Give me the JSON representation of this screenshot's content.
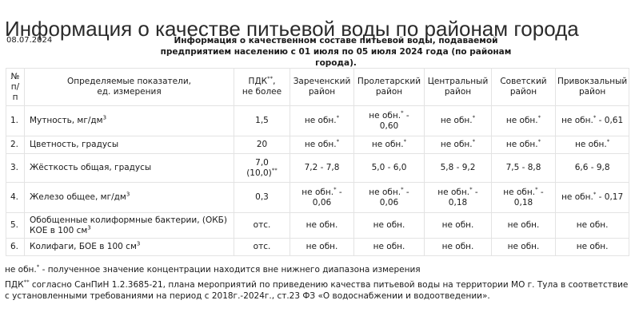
{
  "page": {
    "title": "Информация о качестве питьевой воды по районам города",
    "date": "08.07.2024",
    "subtitle_line1": "Информация о качественном составе питьевой воды, подаваемой",
    "subtitle_line2": "предприятием населению с 01 июля по 05 июля 2024 года (по районам города)."
  },
  "table": {
    "headers": {
      "num": [
        "№",
        "п/",
        "п"
      ],
      "indicator": [
        "Определяемые показатели,",
        "ед. измерения"
      ],
      "pdk": [
        "ПДК",
        "**",
        ",",
        "не более"
      ],
      "districts": [
        [
          "Зареченский",
          "район"
        ],
        [
          "Пролетарский",
          "район"
        ],
        [
          "Центральный",
          "район"
        ],
        [
          "Советский",
          "район"
        ],
        [
          "Привокзальный",
          "район"
        ]
      ]
    },
    "rows": [
      {
        "num": "1.",
        "name": [
          "Мутность, мг/дм",
          "3"
        ],
        "pdk": "1,5",
        "values": [
          [
            "не обн.",
            "*",
            ""
          ],
          [
            "не обн.",
            "*",
            " -",
            "0,60"
          ],
          [
            "не обн.",
            "*",
            ""
          ],
          [
            "не обн.",
            "*",
            ""
          ],
          [
            "не обн.",
            "*",
            " - 0,61"
          ]
        ]
      },
      {
        "num": "2.",
        "name": [
          "Цветность, градусы",
          ""
        ],
        "pdk": "20",
        "values": [
          [
            "не обн.",
            "*",
            ""
          ],
          [
            "не обн.",
            "*",
            ""
          ],
          [
            "не обн.",
            "*",
            ""
          ],
          [
            "не обн.",
            "*",
            ""
          ],
          [
            "не обн.",
            "*",
            ""
          ]
        ]
      },
      {
        "num": "3.",
        "name": [
          "Жёсткость общая, градусы",
          ""
        ],
        "pdk": [
          "7,0",
          "(10,0)",
          "**"
        ],
        "values": [
          "7,2 - 7,8",
          "5,0 - 6,0",
          "5,8 - 9,2",
          "7,5 - 8,8",
          "6,6 - 9,8"
        ]
      },
      {
        "num": "4.",
        "name": [
          "Железо общее, мг/дм",
          "3"
        ],
        "pdk": "0,3",
        "values": [
          [
            "не обн.",
            "*",
            " -",
            "0,06"
          ],
          [
            "не обн.",
            "*",
            " -",
            "0,06"
          ],
          [
            "не обн.",
            "*",
            " -",
            "0,18"
          ],
          [
            "не обн.",
            "*",
            " -",
            "0,18"
          ],
          [
            "не обн.",
            "*",
            " - 0,17"
          ]
        ]
      },
      {
        "num": "5.",
        "name": [
          "Обобщенные колиформные бактерии, (ОКБ)",
          "КОЕ в 100 см",
          "3"
        ],
        "pdk": "отс.",
        "values": [
          "не обн.",
          "не обн.",
          "не обн.",
          "не обн.",
          "не обн."
        ]
      },
      {
        "num": "6.",
        "name": [
          "Колифаги, БОЕ в 100 см",
          "3"
        ],
        "pdk": "отс.",
        "values": [
          "не обн.",
          "не обн.",
          "не обн.",
          "не обн.",
          "не обн."
        ]
      }
    ]
  },
  "notes": {
    "note1_prefix": "не обн.",
    "note1_mark": "*",
    "note1_text": " - полученное значение концентрации находится вне нижнего диапазона измерения",
    "note2_prefix": "ПДК",
    "note2_mark": "**",
    "note2_text": " согласно СанПиН 1.2.3685-21, плана мероприятий по приведению качества питьевой воды на территории МО г. Тула в соответствие с установленными требованиями на период с 2018г.-2024г., ст.23 ФЗ «О водоснабжении и водоотведении»."
  }
}
